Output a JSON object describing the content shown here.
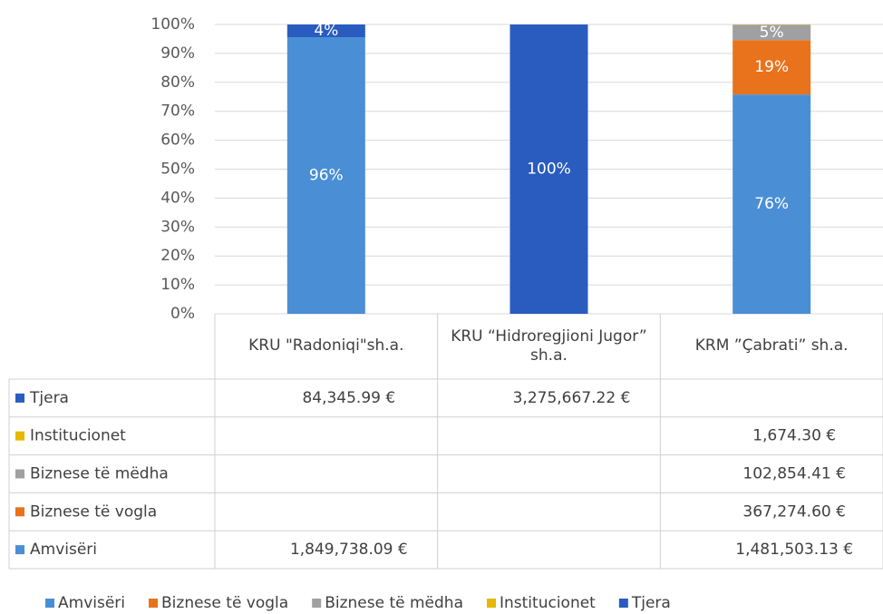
{
  "chart_data": {
    "type": "stacked_bar",
    "categories": [
      "KRU \"Radoniqi\"sh.a.",
      "KRU “Hidroregjioni Jugor” sh.a.",
      "KRM ”Çabrati” sh.a."
    ],
    "ylim": [
      0,
      100
    ],
    "yticks": [
      {
        "value": 0,
        "label": "0%"
      },
      {
        "value": 10,
        "label": "10%"
      },
      {
        "value": 20,
        "label": "20%"
      },
      {
        "value": 30,
        "label": "30%"
      },
      {
        "value": 40,
        "label": "40%"
      },
      {
        "value": 50,
        "label": "50%"
      },
      {
        "value": 60,
        "label": "60%"
      },
      {
        "value": 70,
        "label": "70%"
      },
      {
        "value": 80,
        "label": "80%"
      },
      {
        "value": 90,
        "label": "90%"
      },
      {
        "value": 100,
        "label": "100%"
      }
    ],
    "grid": true,
    "legend": "bottom",
    "series": [
      {
        "name": "Amvisëri",
        "color": "#4a8fd6",
        "values": [
          95.6,
          null,
          75.8
        ],
        "value_labels": [
          "96%",
          null,
          "76%"
        ],
        "amounts": [
          "1,849,738.09 €",
          null,
          "1,481,503.13 €"
        ]
      },
      {
        "name": "Biznese të vogla",
        "color": "#e8731c",
        "values": [
          null,
          null,
          18.8
        ],
        "value_labels": [
          null,
          null,
          "19%"
        ],
        "amounts": [
          null,
          null,
          "367,274.60 €"
        ]
      },
      {
        "name": "Biznese të mëdha",
        "color": "#a0a0a0",
        "values": [
          null,
          null,
          5.3
        ],
        "value_labels": [
          null,
          null,
          "5%"
        ],
        "amounts": [
          null,
          null,
          "102,854.41 €"
        ]
      },
      {
        "name": "Institucionet",
        "color": "#e6b800",
        "values": [
          null,
          null,
          0.1
        ],
        "value_labels": [
          null,
          null,
          null
        ],
        "amounts": [
          null,
          null,
          "1,674.30 €"
        ]
      },
      {
        "name": "Tjera",
        "color": "#2a5cbf",
        "values": [
          4.4,
          100,
          null
        ],
        "value_labels": [
          "4%",
          "100%",
          null
        ],
        "amounts": [
          "84,345.99 €",
          "3,275,667.22 €",
          null
        ]
      }
    ]
  }
}
